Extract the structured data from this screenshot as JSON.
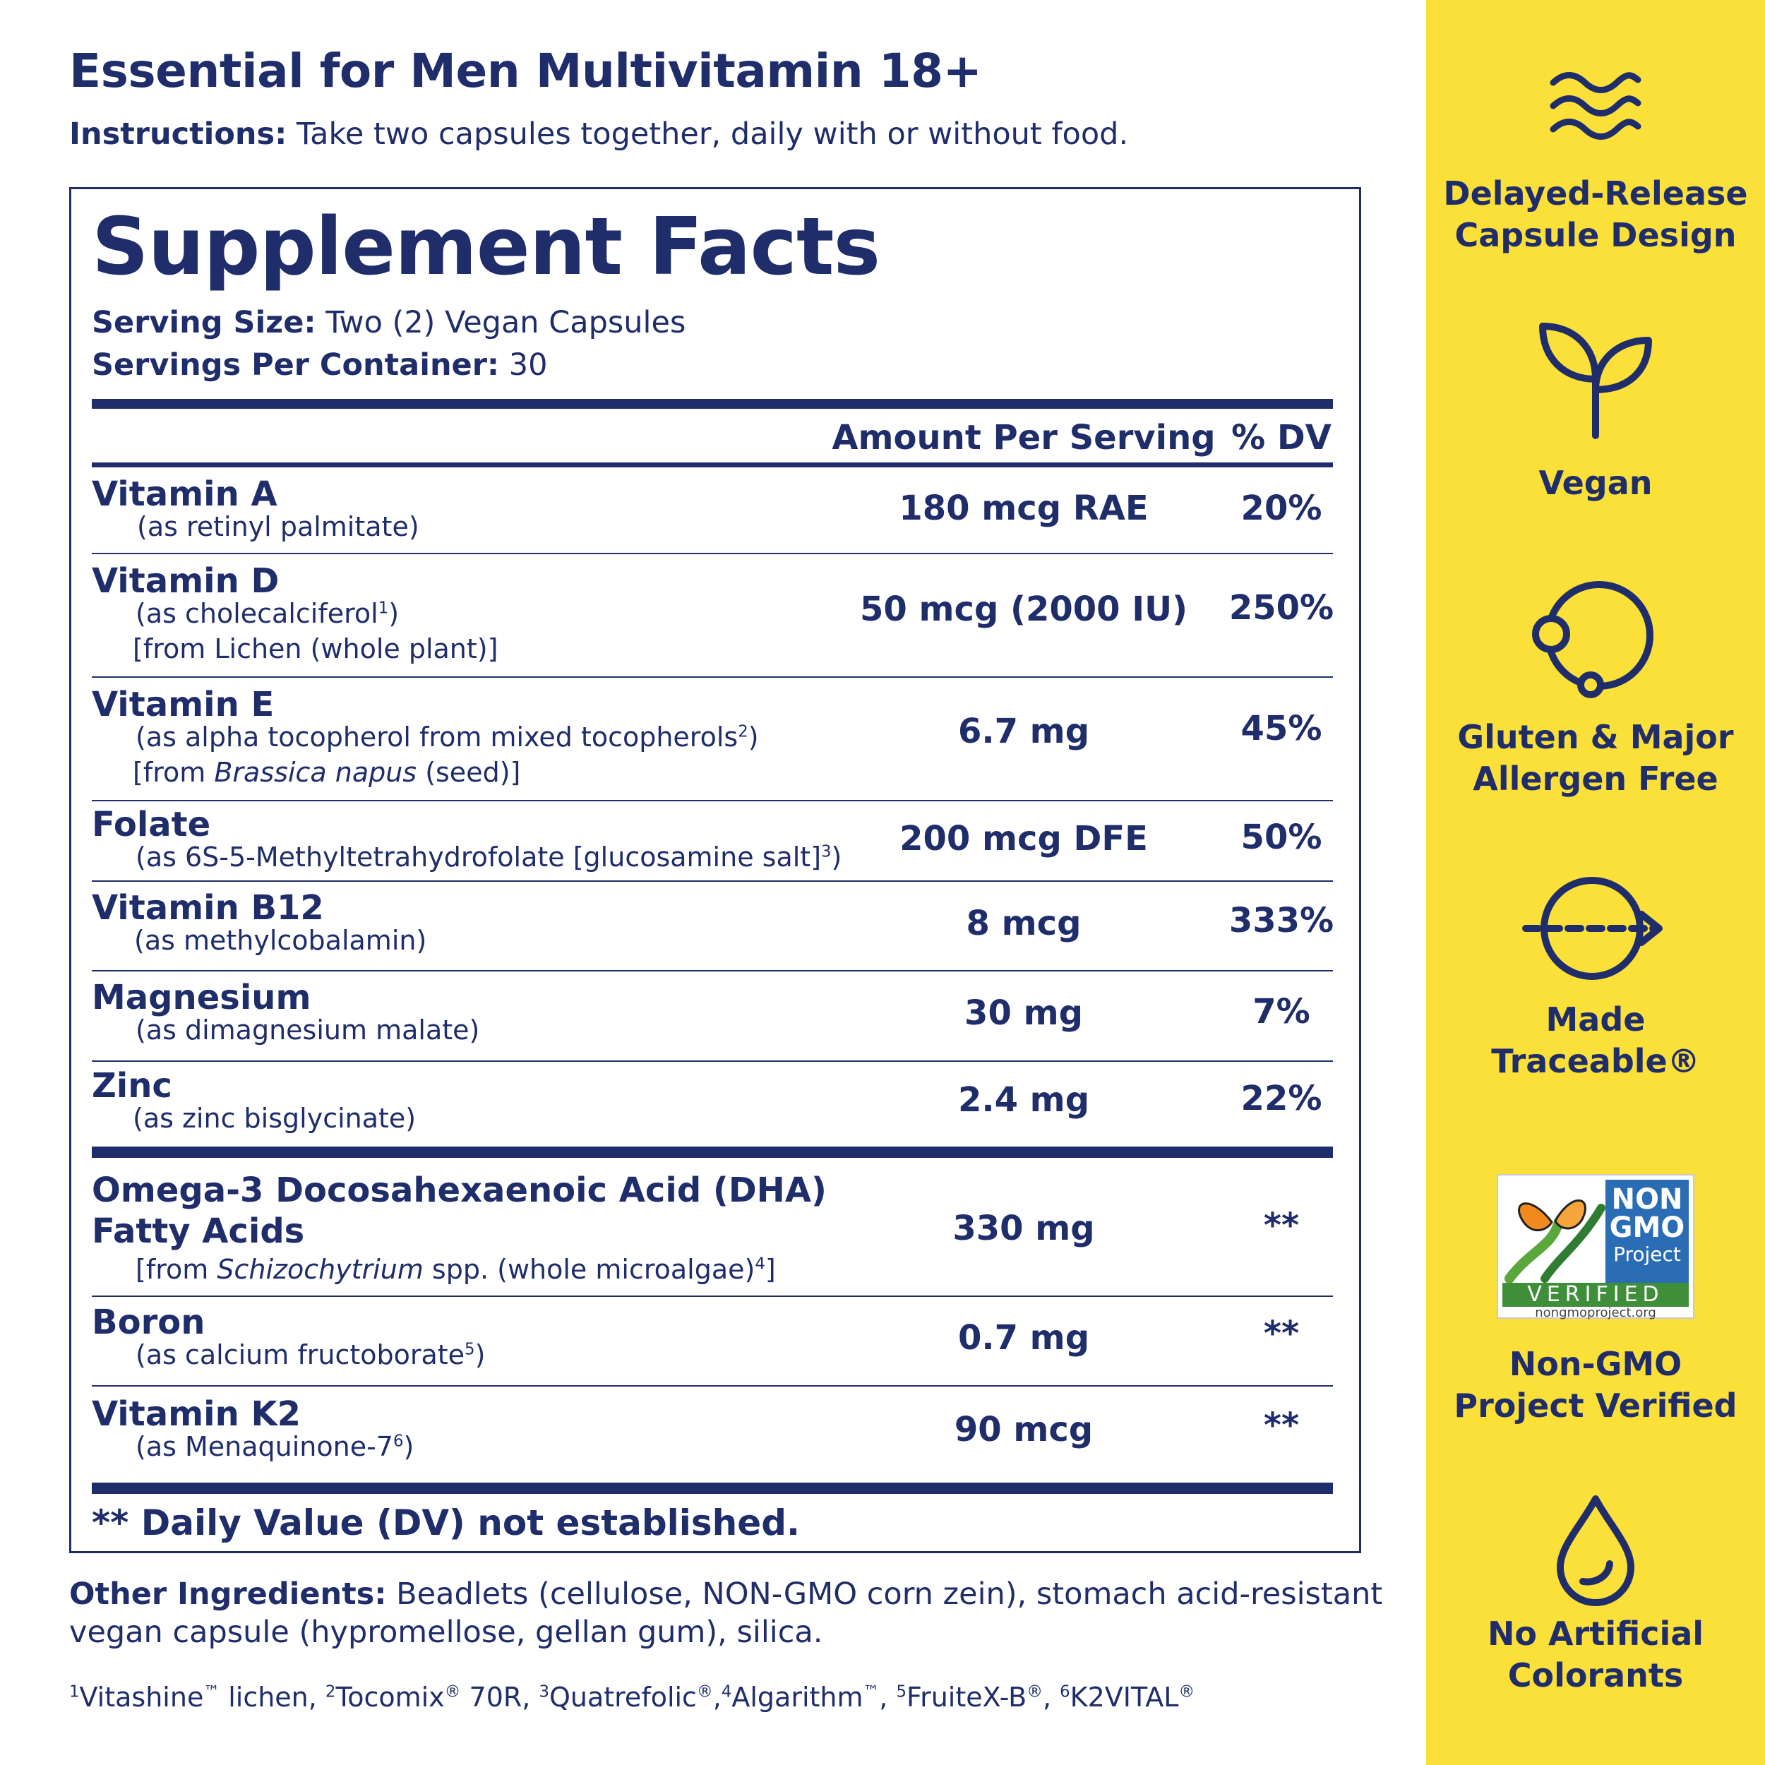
{
  "header": {
    "title": "Essential for Men Multivitamin 18+",
    "instructions_label": "Instructions:",
    "instructions_text": "Take two capsules together, daily with or without food."
  },
  "facts": {
    "title": "Supplement Facts",
    "serving_size_label": "Serving Size:",
    "serving_size_value": "Two (2) Vegan Capsules",
    "servings_per_container_label": "Servings Per Container:",
    "servings_per_container_value": "30",
    "col_amount": "Amount Per Serving",
    "col_dv": "% DV",
    "rows": [
      {
        "name": "Vitamin A",
        "sub1": "(as retinyl palmitate)",
        "amount": "180 mcg RAE",
        "dv": "20%"
      },
      {
        "name": "Vitamin D",
        "sub1_pre": "(as cholecalciferol",
        "sub1_sup": "1",
        "sub1_post": ")",
        "sub2": "[from Lichen (whole plant)]",
        "amount": "50 mcg (2000 IU)",
        "dv": "250%"
      },
      {
        "name": "Vitamin E",
        "sub1_pre": "(as alpha tocopherol from mixed tocopherols",
        "sub1_sup": "2",
        "sub1_post": ")",
        "sub2_pre": "[from ",
        "sub2_ital": "Brassica napus",
        "sub2_post": " (seed)]",
        "amount": "6.7 mg",
        "dv": "45%"
      },
      {
        "name": "Folate",
        "sub1_pre": "(as 6S-5-Methyltetrahydrofolate [glucosamine salt]",
        "sub1_sup": "3",
        "sub1_post": ")",
        "amount": "200 mcg DFE",
        "dv": "50%"
      },
      {
        "name": "Vitamin B12",
        "sub1": "(as methylcobalamin)",
        "amount": "8 mcg",
        "dv": "333%"
      },
      {
        "name": "Magnesium",
        "sub1": "(as dimagnesium malate)",
        "amount": "30 mg",
        "dv": "7%"
      },
      {
        "name": "Zinc",
        "sub1": "(as zinc bisglycinate)",
        "amount": "2.4 mg",
        "dv": "22%"
      },
      {
        "name": "Omega-3 Docosahexaenoic Acid (DHA)",
        "name2": "Fatty Acids",
        "sub1_pre": "[from ",
        "sub1_ital": "Schizochytrium",
        "sub1_mid": " spp. (whole microalgae)",
        "sub1_sup": "4",
        "sub1_post": "]",
        "amount": "330 mg",
        "dv": "**"
      },
      {
        "name": "Boron",
        "sub1_pre": "(as calcium fructoborate",
        "sub1_sup": "5",
        "sub1_post": ")",
        "amount": "0.7 mg",
        "dv": "**"
      },
      {
        "name": "Vitamin K2",
        "sub1_pre": "(as Menaquinone-7",
        "sub1_sup": "6",
        "sub1_post": ")",
        "amount": "90 mcg",
        "dv": "**"
      }
    ],
    "dv_note": "** Daily Value (DV) not established."
  },
  "other_ingredients": {
    "label": "Other Ingredients:",
    "text": "Beadlets (cellulose, NON-GMO corn zein), stomach acid-resistant vegan capsule (hypromellose, gellan gum), silica."
  },
  "footnotes": [
    {
      "n": "1",
      "text": "Vitashine",
      "mark": "™",
      "after": " lichen, "
    },
    {
      "n": "2",
      "text": "Tocomix",
      "mark": "®",
      "after": " 70R, "
    },
    {
      "n": "3",
      "text": "Quatrefolic",
      "mark": "®",
      "after": ","
    },
    {
      "n": "4",
      "text": "Algarithm",
      "mark": "™",
      "after": ", "
    },
    {
      "n": "5",
      "text": "FruiteX-B",
      "mark": "®",
      "after": ", "
    },
    {
      "n": "6",
      "text": "K2VITAL",
      "mark": "®",
      "after": ""
    }
  ],
  "sidebar": {
    "background": "#fce03a",
    "accent": "#1f2d6b",
    "badges": [
      {
        "icon": "waves-icon",
        "label": "Delayed-Release\nCapsule Design"
      },
      {
        "icon": "sprout-icon",
        "label": "Vegan"
      },
      {
        "icon": "allergen-circle-icon",
        "label": "Gluten & Major\nAllergen Free"
      },
      {
        "icon": "trace-arrow-icon",
        "label": "Made\nTraceable®"
      },
      {
        "icon": "non-gmo-logo",
        "label": "Non-GMO\nProject Verified",
        "logo_lines": [
          "NON",
          "GMO",
          "Project",
          "VERIFIED",
          "nongmoproject.org"
        ]
      },
      {
        "icon": "drop-icon",
        "label": "No Artificial\nColorants"
      }
    ]
  }
}
